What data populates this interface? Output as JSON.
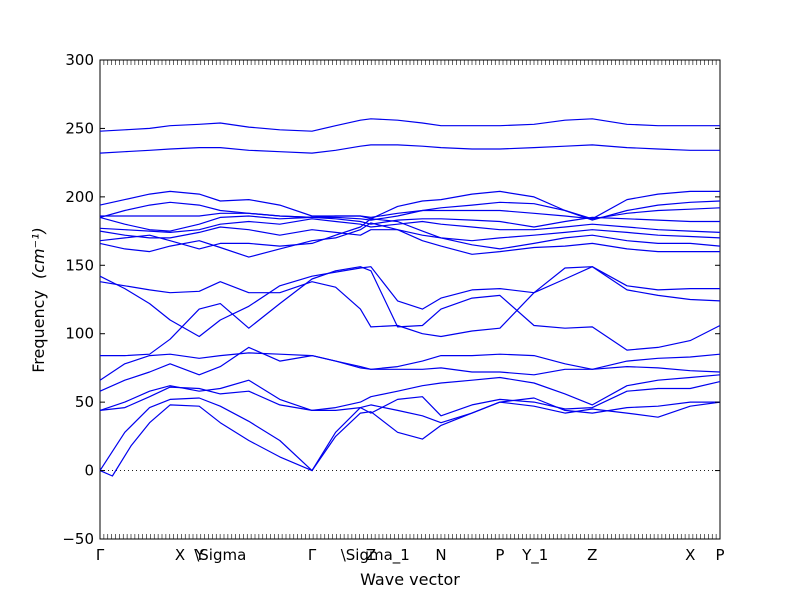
{
  "chart_data": {
    "type": "line",
    "xlabel": "Wave vector",
    "ylabel": "Frequency",
    "ylabel_unit": "(cm⁻¹)",
    "ylim": [
      -50,
      300
    ],
    "yticks": [
      -50,
      0,
      50,
      100,
      150,
      200,
      250,
      300
    ],
    "x_ticks": [
      {
        "label": "Γ",
        "x": 0
      },
      {
        "label": "X",
        "x": 0.129
      },
      {
        "label": "Y",
        "x": 0.161
      },
      {
        "label": "\\Sigma",
        "x": 0.194
      },
      {
        "label": "Γ",
        "x": 0.342
      },
      {
        "label": "Z",
        "x": 0.437
      },
      {
        "label": "\\Sigma_1",
        "x": 0.444
      },
      {
        "label": "N",
        "x": 0.55
      },
      {
        "label": "P",
        "x": 0.645
      },
      {
        "label": "Y_1",
        "x": 0.702
      },
      {
        "label": "Z",
        "x": 0.794
      },
      {
        "label": "X",
        "x": 0.952
      },
      {
        "label": "P",
        "x": 1.0
      }
    ],
    "zero_line": true,
    "line_color": "#0000ee",
    "series": [
      {
        "x": [
          0,
          0.02,
          0.05,
          0.08,
          0.113,
          0.16,
          0.194,
          0.24,
          0.29,
          0.342,
          0.38,
          0.42,
          0.437,
          0.48,
          0.52,
          0.55,
          0.6,
          0.645,
          0.7,
          0.75,
          0.794,
          0.85,
          0.9,
          0.952,
          1.0
        ],
        "values": [
          0,
          -4,
          18,
          35,
          48,
          47,
          35,
          22,
          10,
          0,
          25,
          42,
          43,
          28,
          23,
          33,
          42,
          50,
          47,
          42,
          45,
          42,
          39,
          47,
          50
        ]
      },
      {
        "x": [
          0,
          0.04,
          0.08,
          0.113,
          0.16,
          0.194,
          0.24,
          0.29,
          0.342,
          0.38,
          0.42,
          0.437,
          0.48,
          0.52,
          0.55,
          0.6,
          0.645,
          0.7,
          0.75,
          0.794,
          0.85,
          0.9,
          0.952,
          1.0
        ],
        "values": [
          0,
          28,
          46,
          52,
          53,
          47,
          36,
          22,
          0,
          28,
          46,
          48,
          44,
          40,
          35,
          42,
          50,
          53,
          44,
          42,
          46,
          47,
          50,
          50
        ]
      },
      {
        "x": [
          0,
          0.04,
          0.08,
          0.113,
          0.16,
          0.194,
          0.24,
          0.29,
          0.342,
          0.38,
          0.42,
          0.437,
          0.48,
          0.52,
          0.55,
          0.6,
          0.645,
          0.7,
          0.75,
          0.794,
          0.85,
          0.9,
          0.952,
          1.0
        ],
        "values": [
          44,
          46,
          54,
          61,
          60,
          56,
          58,
          48,
          44,
          44,
          46,
          42,
          52,
          54,
          40,
          48,
          52,
          50,
          45,
          46,
          58,
          60,
          60,
          65
        ]
      },
      {
        "x": [
          0,
          0.04,
          0.08,
          0.113,
          0.16,
          0.194,
          0.24,
          0.29,
          0.342,
          0.38,
          0.42,
          0.437,
          0.48,
          0.52,
          0.55,
          0.6,
          0.645,
          0.7,
          0.75,
          0.794,
          0.85,
          0.9,
          0.952,
          1.0
        ],
        "values": [
          44,
          50,
          58,
          62,
          58,
          60,
          66,
          52,
          44,
          46,
          50,
          54,
          58,
          62,
          64,
          66,
          68,
          64,
          56,
          48,
          62,
          66,
          68,
          70
        ]
      },
      {
        "x": [
          0,
          0.04,
          0.08,
          0.113,
          0.16,
          0.194,
          0.24,
          0.29,
          0.342,
          0.38,
          0.42,
          0.437,
          0.48,
          0.52,
          0.55,
          0.6,
          0.645,
          0.7,
          0.75,
          0.794,
          0.85,
          0.9,
          0.952,
          1.0
        ],
        "values": [
          58,
          66,
          72,
          78,
          70,
          76,
          90,
          80,
          84,
          80,
          76,
          74,
          76,
          80,
          84,
          84,
          85,
          84,
          78,
          74,
          80,
          82,
          83,
          85
        ]
      },
      {
        "x": [
          0,
          0.04,
          0.08,
          0.113,
          0.16,
          0.194,
          0.24,
          0.29,
          0.342,
          0.38,
          0.42,
          0.437,
          0.48,
          0.52,
          0.55,
          0.6,
          0.645,
          0.7,
          0.75,
          0.794,
          0.85,
          0.9,
          0.952,
          1.0
        ],
        "values": [
          66,
          78,
          84,
          85,
          82,
          84,
          86,
          85,
          84,
          80,
          75,
          74,
          74,
          74,
          75,
          72,
          72,
          70,
          74,
          74,
          76,
          75,
          73,
          72
        ]
      },
      {
        "x": [
          0,
          0.04,
          0.08,
          0.113,
          0.16,
          0.194,
          0.24,
          0.29,
          0.342,
          0.38,
          0.42,
          0.437,
          0.48,
          0.52,
          0.55,
          0.6,
          0.645,
          0.7,
          0.75,
          0.794,
          0.85,
          0.9,
          0.952,
          1.0
        ],
        "values": [
          84,
          84,
          85,
          96,
          118,
          122,
          104,
          122,
          140,
          146,
          149,
          146,
          105,
          106,
          118,
          126,
          128,
          106,
          104,
          105,
          88,
          90,
          95,
          106
        ]
      },
      {
        "x": [
          0,
          0.04,
          0.08,
          0.113,
          0.16,
          0.194,
          0.24,
          0.29,
          0.342,
          0.38,
          0.42,
          0.437,
          0.48,
          0.52,
          0.55,
          0.6,
          0.645,
          0.7,
          0.75,
          0.794,
          0.85,
          0.9,
          0.952,
          1.0
        ],
        "values": [
          138,
          135,
          132,
          130,
          131,
          138,
          130,
          130,
          138,
          134,
          118,
          105,
          106,
          100,
          98,
          102,
          104,
          130,
          148,
          149,
          132,
          128,
          125,
          124
        ]
      },
      {
        "x": [
          0,
          0.04,
          0.08,
          0.113,
          0.16,
          0.194,
          0.24,
          0.29,
          0.342,
          0.38,
          0.42,
          0.437,
          0.48,
          0.52,
          0.55,
          0.6,
          0.645,
          0.7,
          0.75,
          0.794,
          0.85,
          0.9,
          0.952,
          1.0
        ],
        "values": [
          142,
          133,
          122,
          110,
          98,
          110,
          120,
          135,
          142,
          145,
          148,
          149,
          124,
          118,
          126,
          132,
          133,
          130,
          140,
          149,
          135,
          132,
          133,
          133
        ]
      },
      {
        "x": [
          0,
          0.04,
          0.08,
          0.113,
          0.16,
          0.194,
          0.24,
          0.29,
          0.342,
          0.38,
          0.42,
          0.437,
          0.48,
          0.52,
          0.55,
          0.6,
          0.645,
          0.7,
          0.75,
          0.794,
          0.85,
          0.9,
          0.952,
          1.0
        ],
        "values": [
          166,
          162,
          160,
          164,
          168,
          163,
          156,
          162,
          168,
          170,
          176,
          181,
          176,
          168,
          164,
          158,
          160,
          163,
          164,
          166,
          162,
          160,
          160,
          160
        ]
      },
      {
        "x": [
          0,
          0.04,
          0.08,
          0.113,
          0.16,
          0.194,
          0.24,
          0.29,
          0.342,
          0.38,
          0.42,
          0.437,
          0.48,
          0.52,
          0.55,
          0.6,
          0.645,
          0.7,
          0.75,
          0.794,
          0.85,
          0.9,
          0.952,
          1.0
        ],
        "values": [
          168,
          170,
          172,
          168,
          162,
          166,
          166,
          164,
          166,
          172,
          178,
          184,
          182,
          175,
          170,
          165,
          162,
          166,
          170,
          172,
          168,
          166,
          166,
          164
        ]
      },
      {
        "x": [
          0,
          0.04,
          0.08,
          0.113,
          0.16,
          0.194,
          0.24,
          0.29,
          0.342,
          0.38,
          0.42,
          0.437,
          0.48,
          0.52,
          0.55,
          0.6,
          0.645,
          0.7,
          0.75,
          0.794,
          0.85,
          0.9,
          0.952,
          1.0
        ],
        "values": [
          175,
          172,
          170,
          170,
          174,
          178,
          176,
          172,
          176,
          174,
          172,
          176,
          176,
          172,
          170,
          168,
          170,
          172,
          174,
          176,
          174,
          172,
          171,
          170
        ]
      },
      {
        "x": [
          0,
          0.04,
          0.08,
          0.113,
          0.16,
          0.194,
          0.24,
          0.29,
          0.342,
          0.38,
          0.42,
          0.437,
          0.48,
          0.52,
          0.55,
          0.6,
          0.645,
          0.7,
          0.75,
          0.794,
          0.85,
          0.9,
          0.952,
          1.0
        ],
        "values": [
          177,
          176,
          175,
          174,
          176,
          180,
          182,
          180,
          184,
          182,
          180,
          178,
          180,
          182,
          180,
          178,
          176,
          176,
          178,
          180,
          178,
          176,
          175,
          174
        ]
      },
      {
        "x": [
          0,
          0.04,
          0.08,
          0.113,
          0.16,
          0.194,
          0.24,
          0.29,
          0.342,
          0.38,
          0.42,
          0.437,
          0.48,
          0.52,
          0.55,
          0.6,
          0.645,
          0.7,
          0.75,
          0.794,
          0.85,
          0.9,
          0.952,
          1.0
        ],
        "values": [
          185,
          180,
          176,
          175,
          180,
          185,
          186,
          184,
          185,
          184,
          182,
          180,
          183,
          184,
          184,
          183,
          182,
          178,
          182,
          185,
          184,
          183,
          182,
          182
        ]
      },
      {
        "x": [
          0,
          0.04,
          0.08,
          0.113,
          0.16,
          0.194,
          0.24,
          0.29,
          0.342,
          0.38,
          0.42,
          0.437,
          0.48,
          0.52,
          0.55,
          0.6,
          0.645,
          0.7,
          0.75,
          0.794,
          0.85,
          0.9,
          0.952,
          1.0
        ],
        "values": [
          186,
          186,
          186,
          186,
          186,
          188,
          188,
          186,
          185,
          186,
          186,
          185,
          188,
          190,
          190,
          190,
          190,
          188,
          186,
          184,
          188,
          190,
          191,
          192
        ]
      },
      {
        "x": [
          0,
          0.04,
          0.08,
          0.113,
          0.16,
          0.194,
          0.24,
          0.29,
          0.342,
          0.38,
          0.42,
          0.437,
          0.48,
          0.52,
          0.55,
          0.6,
          0.645,
          0.7,
          0.75,
          0.794,
          0.85,
          0.9,
          0.952,
          1.0
        ],
        "values": [
          185,
          190,
          194,
          196,
          194,
          190,
          188,
          186,
          185,
          185,
          184,
          183,
          186,
          190,
          192,
          194,
          196,
          195,
          190,
          183,
          190,
          194,
          196,
          197
        ]
      },
      {
        "x": [
          0,
          0.04,
          0.08,
          0.113,
          0.16,
          0.194,
          0.24,
          0.29,
          0.342,
          0.38,
          0.42,
          0.437,
          0.48,
          0.52,
          0.55,
          0.6,
          0.645,
          0.7,
          0.75,
          0.794,
          0.85,
          0.9,
          0.952,
          1.0
        ],
        "values": [
          194,
          198,
          202,
          204,
          202,
          197,
          198,
          194,
          186,
          186,
          186,
          184,
          193,
          197,
          198,
          202,
          204,
          200,
          190,
          184,
          198,
          202,
          204,
          204
        ]
      },
      {
        "x": [
          0,
          0.04,
          0.08,
          0.113,
          0.16,
          0.194,
          0.24,
          0.29,
          0.342,
          0.38,
          0.42,
          0.437,
          0.48,
          0.52,
          0.55,
          0.6,
          0.645,
          0.7,
          0.75,
          0.794,
          0.85,
          0.9,
          0.952,
          1.0
        ],
        "values": [
          232,
          233,
          234,
          235,
          236,
          236,
          234,
          233,
          232,
          234,
          237,
          238,
          238,
          237,
          236,
          235,
          235,
          236,
          237,
          238,
          236,
          235,
          234,
          234
        ]
      },
      {
        "x": [
          0,
          0.04,
          0.08,
          0.113,
          0.16,
          0.194,
          0.24,
          0.29,
          0.342,
          0.38,
          0.42,
          0.437,
          0.48,
          0.52,
          0.55,
          0.6,
          0.645,
          0.7,
          0.75,
          0.794,
          0.85,
          0.9,
          0.952,
          1.0
        ],
        "values": [
          248,
          249,
          250,
          252,
          253,
          254,
          251,
          249,
          248,
          252,
          256,
          257,
          256,
          254,
          252,
          252,
          252,
          253,
          256,
          257,
          253,
          252,
          252,
          252
        ]
      }
    ]
  }
}
